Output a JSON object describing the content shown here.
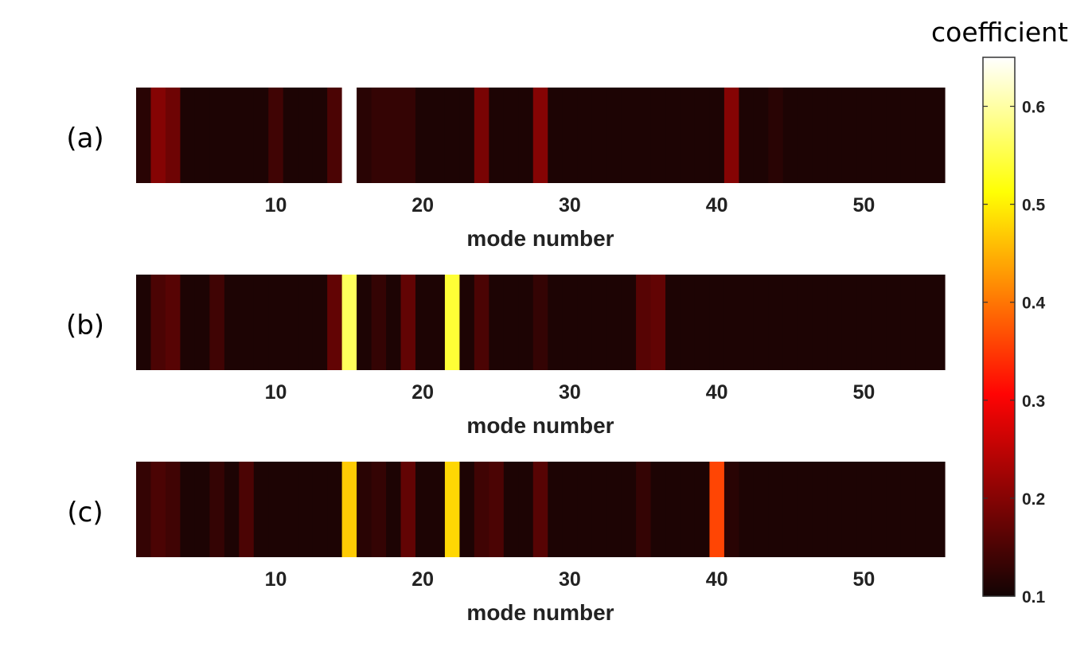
{
  "chart_data": {
    "type": "heatmap",
    "x_range": [
      1,
      55
    ],
    "x_ticks": [
      10,
      20,
      30,
      40,
      50
    ],
    "colormap": "hot",
    "colorbar": {
      "label": "coefficient",
      "min": 0.1,
      "max": 0.65,
      "ticks": [
        0.6,
        0.5,
        0.4,
        0.3,
        0.2,
        0.1
      ],
      "tick_labels": [
        "0.6",
        "0.5",
        "0.4",
        "0.3",
        "0.2",
        "0.1"
      ]
    },
    "panels": [
      {
        "label": "(a)",
        "xlabel": "mode number",
        "x": [
          1,
          2,
          3,
          4,
          5,
          6,
          7,
          8,
          9,
          10,
          11,
          12,
          13,
          14,
          15,
          16,
          17,
          18,
          19,
          20,
          21,
          22,
          23,
          24,
          25,
          26,
          27,
          28,
          29,
          30,
          31,
          32,
          33,
          34,
          35,
          36,
          37,
          38,
          39,
          40,
          41,
          42,
          43,
          44,
          45,
          46,
          47,
          48,
          49,
          50,
          51,
          52,
          53,
          54,
          55
        ],
        "values": [
          0.12,
          0.2,
          0.18,
          0.11,
          0.11,
          0.11,
          0.11,
          0.11,
          0.11,
          0.14,
          0.11,
          0.11,
          0.11,
          0.15,
          0.65,
          0.12,
          0.13,
          0.13,
          0.13,
          0.11,
          0.11,
          0.11,
          0.11,
          0.19,
          0.11,
          0.11,
          0.11,
          0.2,
          0.11,
          0.11,
          0.11,
          0.11,
          0.11,
          0.11,
          0.11,
          0.11,
          0.11,
          0.11,
          0.11,
          0.11,
          0.2,
          0.11,
          0.11,
          0.12,
          0.11,
          0.11,
          0.11,
          0.11,
          0.11,
          0.11,
          0.11,
          0.11,
          0.11,
          0.11,
          0.11
        ]
      },
      {
        "label": "(b)",
        "xlabel": "mode number",
        "x": [
          1,
          2,
          3,
          4,
          5,
          6,
          7,
          8,
          9,
          10,
          11,
          12,
          13,
          14,
          15,
          16,
          17,
          18,
          19,
          20,
          21,
          22,
          23,
          24,
          25,
          26,
          27,
          28,
          29,
          30,
          31,
          32,
          33,
          34,
          35,
          36,
          37,
          38,
          39,
          40,
          41,
          42,
          43,
          44,
          45,
          46,
          47,
          48,
          49,
          50,
          51,
          52,
          53,
          54,
          55
        ],
        "values": [
          0.11,
          0.15,
          0.16,
          0.11,
          0.11,
          0.14,
          0.11,
          0.11,
          0.11,
          0.11,
          0.11,
          0.11,
          0.11,
          0.17,
          0.56,
          0.11,
          0.13,
          0.11,
          0.17,
          0.11,
          0.11,
          0.54,
          0.11,
          0.15,
          0.11,
          0.11,
          0.11,
          0.13,
          0.11,
          0.11,
          0.11,
          0.11,
          0.11,
          0.11,
          0.16,
          0.17,
          0.11,
          0.11,
          0.11,
          0.11,
          0.11,
          0.11,
          0.11,
          0.11,
          0.11,
          0.11,
          0.11,
          0.11,
          0.11,
          0.11,
          0.11,
          0.11,
          0.11,
          0.11,
          0.11
        ]
      },
      {
        "label": "(c)",
        "xlabel": "mode number",
        "x": [
          1,
          2,
          3,
          4,
          5,
          6,
          7,
          8,
          9,
          10,
          11,
          12,
          13,
          14,
          15,
          16,
          17,
          18,
          19,
          20,
          21,
          22,
          23,
          24,
          25,
          26,
          27,
          28,
          29,
          30,
          31,
          32,
          33,
          34,
          35,
          36,
          37,
          38,
          39,
          40,
          41,
          42,
          43,
          44,
          45,
          46,
          47,
          48,
          49,
          50,
          51,
          52,
          53,
          54,
          55
        ],
        "values": [
          0.13,
          0.15,
          0.14,
          0.11,
          0.11,
          0.13,
          0.11,
          0.15,
          0.11,
          0.11,
          0.11,
          0.11,
          0.11,
          0.11,
          0.47,
          0.12,
          0.13,
          0.11,
          0.17,
          0.11,
          0.11,
          0.48,
          0.11,
          0.14,
          0.15,
          0.11,
          0.11,
          0.16,
          0.11,
          0.11,
          0.11,
          0.11,
          0.11,
          0.11,
          0.13,
          0.11,
          0.11,
          0.11,
          0.11,
          0.36,
          0.12,
          0.11,
          0.11,
          0.11,
          0.11,
          0.11,
          0.11,
          0.11,
          0.11,
          0.11,
          0.11,
          0.11,
          0.11,
          0.11,
          0.11
        ]
      }
    ]
  }
}
